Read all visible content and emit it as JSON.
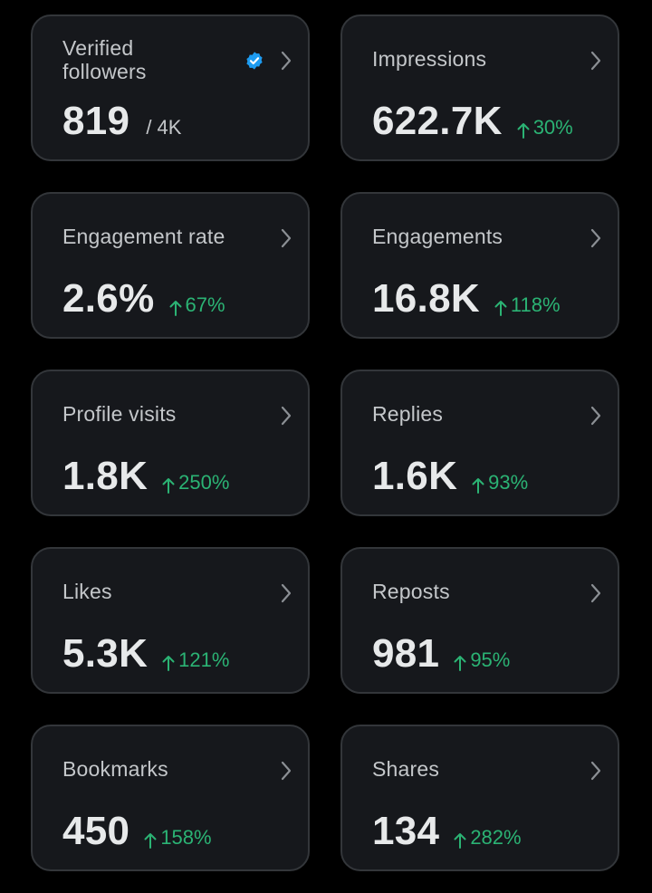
{
  "colors": {
    "background": "#000000",
    "card_bg": "#16181c",
    "card_border": "#33363a",
    "title": "#c4c7ca",
    "value": "#e7e9ea",
    "positive": "#2bb374",
    "verified": "#1d9bf0"
  },
  "cards": [
    {
      "id": "verified-followers",
      "title": "Verified followers",
      "value": "819",
      "suffix": "/ 4K",
      "icon": "verified-badge-icon"
    },
    {
      "id": "impressions",
      "title": "Impressions",
      "value": "622.7K",
      "delta": "30%"
    },
    {
      "id": "engagement-rate",
      "title": "Engagement rate",
      "value": "2.6%",
      "delta": "67%"
    },
    {
      "id": "engagements",
      "title": "Engagements",
      "value": "16.8K",
      "delta": "118%"
    },
    {
      "id": "profile-visits",
      "title": "Profile visits",
      "value": "1.8K",
      "delta": "250%"
    },
    {
      "id": "replies",
      "title": "Replies",
      "value": "1.6K",
      "delta": "93%"
    },
    {
      "id": "likes",
      "title": "Likes",
      "value": "5.3K",
      "delta": "121%"
    },
    {
      "id": "reposts",
      "title": "Reposts",
      "value": "981",
      "delta": "95%"
    },
    {
      "id": "bookmarks",
      "title": "Bookmarks",
      "value": "450",
      "delta": "158%"
    },
    {
      "id": "shares",
      "title": "Shares",
      "value": "134",
      "delta": "282%"
    }
  ]
}
